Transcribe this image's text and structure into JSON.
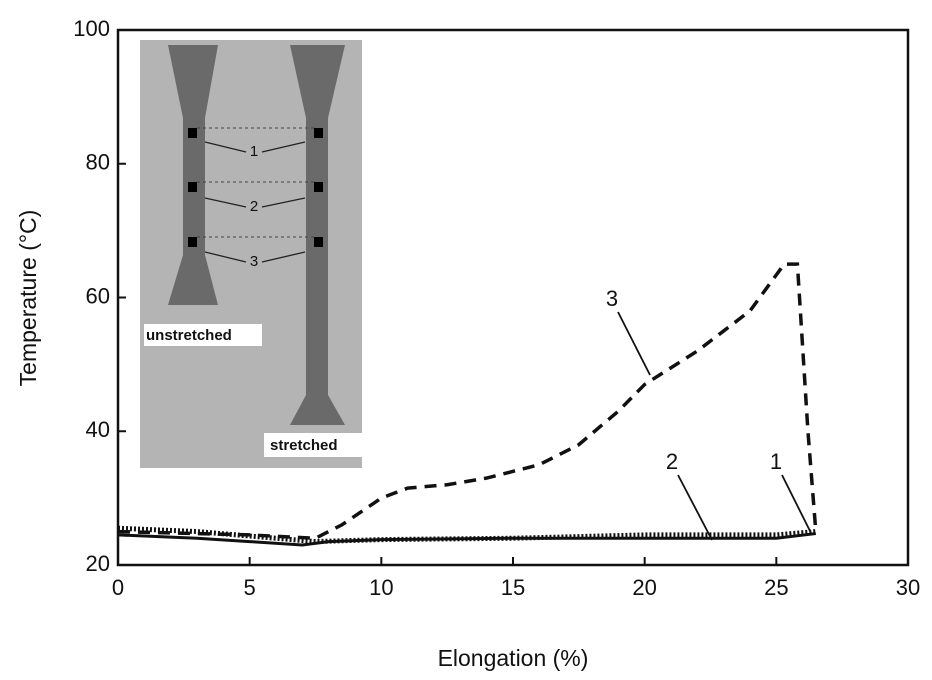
{
  "chart_data": {
    "type": "line",
    "xlabel": "Elongation (%)",
    "ylabel": "Temperature (°C)",
    "xlim": [
      0,
      30
    ],
    "xticks": [
      0,
      5,
      10,
      15,
      20,
      25,
      30
    ],
    "ylim": [
      20,
      100
    ],
    "yticks": [
      20,
      40,
      60,
      80,
      100
    ],
    "series": [
      {
        "name": "1",
        "color": "#111111",
        "style": "solid",
        "x": [
          0,
          3,
          5,
          7,
          8,
          10,
          15,
          20,
          25,
          26.5
        ],
        "values": [
          24.5,
          24,
          23.5,
          23,
          23.5,
          23.8,
          24,
          24,
          24,
          24.7
        ]
      },
      {
        "name": "2",
        "color": "#111111",
        "style": "dotted",
        "x": [
          0,
          3,
          6,
          7.5,
          10,
          15,
          20,
          25,
          26.5
        ],
        "values": [
          25.5,
          25,
          24,
          23.5,
          23.8,
          24,
          24.5,
          24.5,
          25
        ]
      },
      {
        "name": "3",
        "color": "#111111",
        "style": "dashed",
        "x": [
          0,
          5,
          7.5,
          8.5,
          10,
          11,
          12.5,
          14,
          16,
          17.5,
          19,
          20,
          22,
          24,
          25.3,
          25.8,
          26.2,
          26.5
        ],
        "values": [
          25,
          24.5,
          24,
          26,
          30,
          31.5,
          32,
          33,
          35,
          38,
          43,
          47,
          52,
          58,
          65,
          65,
          40,
          25
        ]
      }
    ],
    "inset": {
      "specimens": [
        "unstretched",
        "stretched"
      ],
      "markers": [
        "1",
        "2",
        "3"
      ]
    }
  }
}
